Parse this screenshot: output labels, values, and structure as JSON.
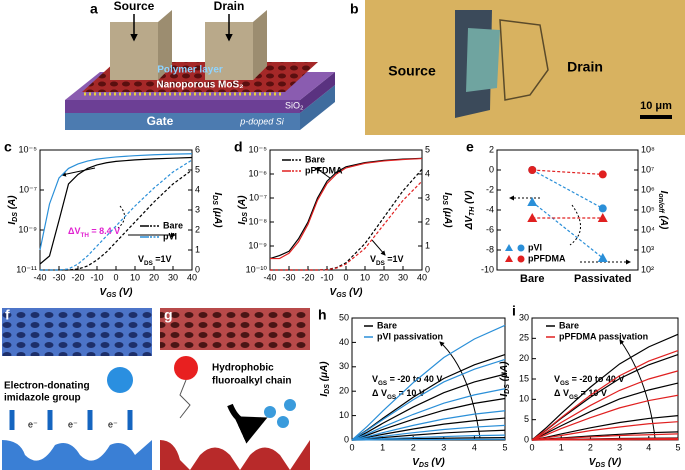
{
  "panels": {
    "a": {
      "label": "a",
      "source": "Source",
      "drain": "Drain",
      "polymer": "Polymer layer",
      "mos2": "Nanoporous MoS₂",
      "sio2": "SiO₂",
      "gate": "Gate",
      "si": "p-doped Si"
    },
    "b": {
      "label": "b",
      "source": "Source",
      "drain": "Drain",
      "scale": "10 μm"
    },
    "f": {
      "label": "f",
      "text": [
        "Electron-donating",
        "imidazole group"
      ],
      "electron": "e⁻"
    },
    "g": {
      "label": "g",
      "text": [
        "Hydrophobic",
        "fluoroalkyl chain"
      ]
    }
  },
  "chart_data": [
    {
      "type": "line",
      "label": "c",
      "ylog": true,
      "x": [
        -40,
        -35,
        -30,
        -25,
        -20,
        -15,
        -10,
        -5,
        0,
        10,
        20,
        30,
        40
      ],
      "xlim": [
        -40,
        40
      ],
      "xticks": [
        -40,
        -30,
        -20,
        -10,
        0,
        10,
        20,
        30,
        40
      ],
      "ylim": [
        1e-11,
        1e-05
      ],
      "yticks": [
        {
          "value": 1e-11,
          "label": "10⁻¹¹"
        },
        {
          "value": 1e-09,
          "label": "10⁻⁹"
        },
        {
          "value": 1e-07,
          "label": "10⁻⁷"
        },
        {
          "value": 1e-05,
          "label": "10⁻⁵"
        }
      ],
      "y2lim": [
        0,
        6
      ],
      "y2ticks": [
        0,
        1,
        2,
        3,
        4,
        5,
        6
      ],
      "xlabel": [
        "V",
        "GS",
        " (V)"
      ],
      "ylabel": [
        "I",
        "DS",
        " (A)"
      ],
      "y2label": [
        "I",
        "DS",
        " (μA)"
      ],
      "annotations": [
        [
          "ΔV",
          "TH",
          " = 8.4 V"
        ],
        [
          "V",
          "DS",
          " =1V"
        ]
      ],
      "series": [
        {
          "name": "Bare",
          "color": "#000000",
          "values": [
            2e-11,
            5e-11,
            3e-09,
            2e-07,
            6e-07,
            1.2e-06,
            1.8e-06,
            2.3e-06,
            2.7e-06,
            3.2e-06,
            3.6e-06,
            3.9e-06,
            4.2e-06
          ],
          "y2_values": [
            0,
            0,
            0,
            0,
            0.05,
            0.2,
            0.5,
            0.9,
            1.4,
            2.4,
            3.4,
            4.3,
            5.0
          ]
        },
        {
          "name": "pVI",
          "color": "#2a8fd8",
          "values": [
            1e-10,
            2e-08,
            4e-07,
            1.2e-06,
            2e-06,
            2.8e-06,
            3.5e-06,
            4e-06,
            4.5e-06,
            5.2e-06,
            5.8e-06,
            6.2e-06,
            6.5e-06
          ],
          "y2_values": [
            0,
            0,
            0,
            0.05,
            0.3,
            0.7,
            1.2,
            1.7,
            2.2,
            3.2,
            4.1,
            4.9,
            5.5
          ]
        }
      ]
    },
    {
      "type": "line",
      "label": "d",
      "ylog": true,
      "x": [
        -40,
        -35,
        -30,
        -25,
        -20,
        -15,
        -10,
        -5,
        0,
        10,
        20,
        30,
        40
      ],
      "xlim": [
        -40,
        40
      ],
      "xticks": [
        -40,
        -30,
        -20,
        -10,
        0,
        10,
        20,
        30,
        40
      ],
      "ylim": [
        1e-10,
        1e-05
      ],
      "yticks": [
        {
          "value": 1e-10,
          "label": "10⁻¹⁰"
        },
        {
          "value": 1e-09,
          "label": "10⁻⁹"
        },
        {
          "value": 1e-08,
          "label": "10⁻⁸"
        },
        {
          "value": 1e-07,
          "label": "10⁻⁷"
        },
        {
          "value": 1e-06,
          "label": "10⁻⁶"
        },
        {
          "value": 1e-05,
          "label": "10⁻⁵"
        }
      ],
      "y2lim": [
        0,
        5
      ],
      "y2ticks": [
        0,
        1,
        2,
        3,
        4,
        5
      ],
      "xlabel": [
        "V",
        "GS",
        " (V)"
      ],
      "ylabel": [
        "I",
        "DS",
        " (A)"
      ],
      "y2label": [
        "I",
        "DS",
        " (μA)"
      ],
      "annotations": [
        [
          "V",
          "DS",
          " =1V"
        ]
      ],
      "series": [
        {
          "name": "Bare",
          "color": "#000000",
          "values": [
            3e-10,
            4e-10,
            6e-10,
            2e-09,
            1e-08,
            1e-07,
            5e-07,
            1.2e-06,
            2e-06,
            3e-06,
            3.7e-06,
            4.2e-06,
            4.5e-06
          ],
          "y2_values": [
            0,
            0,
            0,
            0,
            0,
            0,
            0.02,
            0.1,
            0.3,
            1.1,
            2.2,
            3.3,
            4.2
          ]
        },
        {
          "name": "pPFDMA",
          "color": "#e02020",
          "values": [
            3e-10,
            3e-10,
            5e-10,
            1.5e-09,
            8e-09,
            8e-08,
            4e-07,
            1e-06,
            1.8e-06,
            2.8e-06,
            3.5e-06,
            4e-06,
            4.4e-06
          ],
          "y2_values": [
            0,
            0,
            0,
            0,
            0,
            0,
            0.01,
            0.08,
            0.25,
            0.9,
            1.9,
            2.9,
            3.7
          ]
        }
      ]
    },
    {
      "type": "scatter",
      "label": "e",
      "y2log": true,
      "categories": [
        "Bare",
        "Passivated"
      ],
      "ylim": [
        -10,
        2
      ],
      "yticks": [
        -10,
        -8,
        -6,
        -4,
        -2,
        0,
        2
      ],
      "y2lim": [
        100.0,
        100000000.0
      ],
      "y2ticks": [
        {
          "value": 100.0,
          "label": "10²"
        },
        {
          "value": 1000.0,
          "label": "10³"
        },
        {
          "value": 10000.0,
          "label": "10⁴"
        },
        {
          "value": 100000.0,
          "label": "10⁵"
        },
        {
          "value": 1000000.0,
          "label": "10⁶"
        },
        {
          "value": 10000000.0,
          "label": "10⁷"
        },
        {
          "value": 100000000.0,
          "label": "10⁸"
        }
      ],
      "ylabel": [
        "ΔV",
        "TH",
        " (V)"
      ],
      "y2label": [
        "I",
        "on/off",
        " (A)"
      ],
      "series": [
        {
          "name": "pVI",
          "color": "#2a8fd8",
          "values": [
            -3.2,
            -8.8
          ],
          "y2_values": [
            10000000.0,
            120000.0
          ]
        },
        {
          "name": "pPFDMA",
          "color": "#e02020",
          "values": [
            -4.8,
            -4.8
          ],
          "y2_values": [
            10000000.0,
            6000000.0
          ]
        }
      ]
    },
    {
      "type": "line",
      "label": "h",
      "x": [
        0,
        0.5,
        1,
        2,
        3,
        4,
        5
      ],
      "xlim": [
        0,
        5
      ],
      "xticks": [
        0,
        1,
        2,
        3,
        4,
        5
      ],
      "ylim": [
        0,
        50
      ],
      "yticks": [
        0,
        10,
        20,
        30,
        40,
        50
      ],
      "xlabel": [
        "V",
        "DS",
        " (V)"
      ],
      "ylabel": [
        "I",
        "DS",
        " (μA)"
      ],
      "annotations": [
        [
          "V",
          "GS",
          " =  -20 to 40 V"
        ],
        [
          "Δ V",
          "GS",
          " = 10 V"
        ]
      ],
      "series": [
        {
          "name": "Bare",
          "color": "#000000",
          "values": [
            [
              0,
              0.02,
              0.05,
              0.1,
              0.14,
              0.18,
              0.2
            ],
            [
              0,
              0.12,
              0.25,
              0.5,
              0.72,
              0.88,
              1
            ],
            [
              0,
              0.5,
              1,
              2,
              2.9,
              3.5,
              4
            ],
            [
              0,
              1.1,
              2.3,
              4.5,
              6.5,
              7.9,
              9
            ],
            [
              0,
              2,
              4.3,
              8.5,
              12.2,
              15,
              17
            ],
            [
              0,
              3.2,
              6.8,
              13.5,
              19.4,
              23.8,
              27
            ],
            [
              0,
              4.2,
              8.8,
              17.5,
              25.2,
              30.8,
              35
            ]
          ]
        },
        {
          "name": "pVI passivation",
          "color": "#2a8fd8",
          "values": [
            [
              0,
              0.04,
              0.08,
              0.15,
              0.22,
              0.26,
              0.3
            ],
            [
              0,
              0.24,
              0.5,
              1,
              1.4,
              1.8,
              2
            ],
            [
              0,
              0.7,
              1.5,
              3,
              4.3,
              5.3,
              6
            ],
            [
              0,
              1.4,
              3,
              6,
              8.6,
              10.6,
              12
            ],
            [
              0,
              2.5,
              5.3,
              10.5,
              15.1,
              18.5,
              21
            ],
            [
              0,
              4,
              8.3,
              16.5,
              23.8,
              29,
              33
            ],
            [
              0,
              5.6,
              11.8,
              23.5,
              33.8,
              41.4,
              47
            ]
          ]
        }
      ]
    },
    {
      "type": "line",
      "label": "i",
      "x": [
        0,
        0.5,
        1,
        2,
        3,
        4,
        5
      ],
      "xlim": [
        0,
        5
      ],
      "xticks": [
        0,
        1,
        2,
        3,
        4,
        5
      ],
      "ylim": [
        0,
        30
      ],
      "yticks": [
        0,
        5,
        10,
        15,
        20,
        25,
        30
      ],
      "xlabel": [
        "V",
        "DS",
        " (V)"
      ],
      "ylabel": [
        "I",
        "DS",
        " (μA)"
      ],
      "annotations": [
        [
          "V",
          "GS",
          " =  -20 to 40 V"
        ],
        [
          "Δ V",
          "GS",
          " = 10 V"
        ]
      ],
      "series": [
        {
          "name": "Bare",
          "color": "#000000",
          "values": [
            [
              0,
              0.01,
              0.03,
              0.05,
              0.07,
              0.09,
              0.1
            ],
            [
              0,
              0.06,
              0.13,
              0.25,
              0.36,
              0.44,
              0.5
            ],
            [
              0,
              0.24,
              0.5,
              1,
              1.4,
              1.8,
              2
            ],
            [
              0,
              0.7,
              1.5,
              3,
              4.3,
              5.3,
              6
            ],
            [
              0,
              1.7,
              3.5,
              7,
              10.1,
              12.3,
              14
            ],
            [
              0,
              2.5,
              5.3,
              10.5,
              15.1,
              18.5,
              21
            ],
            [
              0,
              3.1,
              6.5,
              13,
              18.7,
              22.9,
              26
            ]
          ]
        },
        {
          "name": "pPFDMA passivation",
          "color": "#e02020",
          "values": [
            [
              0,
              0.01,
              0.03,
              0.05,
              0.07,
              0.09,
              0.1
            ],
            [
              0,
              0.05,
              0.1,
              0.2,
              0.29,
              0.35,
              0.4
            ],
            [
              0,
              0.18,
              0.38,
              0.75,
              1.1,
              1.3,
              1.5
            ],
            [
              0,
              0.54,
              1.1,
              2.3,
              3.2,
              4,
              4.5
            ],
            [
              0,
              1.3,
              2.8,
              5.5,
              7.9,
              9.7,
              11
            ],
            [
              0,
              2,
              4.3,
              8.5,
              12.2,
              15,
              17
            ],
            [
              0,
              2.6,
              5.5,
              11,
              15.8,
              19.4,
              22
            ]
          ]
        }
      ]
    }
  ]
}
